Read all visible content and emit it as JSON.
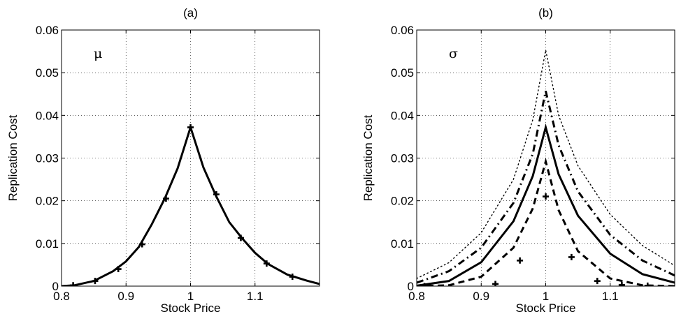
{
  "chart_data": [
    {
      "type": "line",
      "title": "(a)",
      "annotation": "μ",
      "xlabel": "Stock Price",
      "ylabel": "Replication Cost",
      "xlim": [
        0.8,
        1.2
      ],
      "ylim": [
        0,
        0.06
      ],
      "xticks": [
        0.8,
        0.9,
        1,
        1.1
      ],
      "xtick_labels": [
        "0.8",
        "0.9",
        "1",
        "1.1"
      ],
      "yticks": [
        0,
        0.01,
        0.02,
        0.03,
        0.04,
        0.05,
        0.06
      ],
      "ytick_labels": [
        "0",
        "0.01",
        "0.02",
        "0.03",
        "0.04",
        "0.05",
        "0.06"
      ],
      "grid": true,
      "series": [
        {
          "style": "solid",
          "peak_x": 1.0,
          "x": [
            0.8,
            0.82,
            0.85,
            0.88,
            0.9,
            0.92,
            0.94,
            0.96,
            0.98,
            1.0,
            1.02,
            1.04,
            1.06,
            1.08,
            1.1,
            1.12,
            1.15,
            1.18,
            1.2
          ],
          "values": [
            0.0,
            0.0002,
            0.0012,
            0.0035,
            0.0058,
            0.0092,
            0.0145,
            0.0205,
            0.0276,
            0.0372,
            0.0278,
            0.021,
            0.015,
            0.0112,
            0.0078,
            0.0052,
            0.0027,
            0.0013,
            0.0005
          ]
        },
        {
          "style": "markers",
          "x": [
            0.818,
            0.852,
            0.888,
            0.925,
            0.962,
            1.0,
            1.04,
            1.078,
            1.118,
            1.158
          ],
          "values": [
            0.0002,
            0.0012,
            0.004,
            0.0098,
            0.0205,
            0.0372,
            0.0215,
            0.0113,
            0.0053,
            0.0022
          ]
        }
      ]
    },
    {
      "type": "line",
      "title": "(b)",
      "annotation": "σ",
      "xlabel": "Stock Price",
      "ylabel": "Replication Cost",
      "xlim": [
        0.8,
        1.2
      ],
      "ylim": [
        0,
        0.06
      ],
      "xticks": [
        0.8,
        0.9,
        1,
        1.1
      ],
      "xtick_labels": [
        "0.8",
        "0.9",
        "1",
        "1.1"
      ],
      "yticks": [
        0,
        0.01,
        0.02,
        0.03,
        0.04,
        0.05,
        0.06
      ],
      "ytick_labels": [
        "0",
        "0.01",
        "0.02",
        "0.03",
        "0.04",
        "0.05",
        "0.06"
      ],
      "grid": true,
      "series": [
        {
          "style": "dotted",
          "peak_x": 1.0,
          "x": [
            0.8,
            0.85,
            0.9,
            0.95,
            0.98,
            1.0,
            1.02,
            1.05,
            1.1,
            1.15,
            1.2
          ],
          "values": [
            0.0018,
            0.0055,
            0.0125,
            0.025,
            0.039,
            0.0553,
            0.04,
            0.0282,
            0.0168,
            0.0095,
            0.0048
          ]
        },
        {
          "style": "dashdot",
          "peak_x": 1.0,
          "x": [
            0.8,
            0.85,
            0.9,
            0.95,
            0.98,
            1.0,
            1.02,
            1.05,
            1.1,
            1.15,
            1.2
          ],
          "values": [
            0.0008,
            0.0035,
            0.009,
            0.0195,
            0.031,
            0.0457,
            0.033,
            0.0222,
            0.012,
            0.006,
            0.0025
          ]
        },
        {
          "style": "solid",
          "peak_x": 1.0,
          "x": [
            0.8,
            0.85,
            0.9,
            0.95,
            0.98,
            1.0,
            1.02,
            1.05,
            1.1,
            1.15,
            1.2
          ],
          "values": [
            0.0001,
            0.0012,
            0.0056,
            0.0152,
            0.0258,
            0.0372,
            0.0262,
            0.0165,
            0.0076,
            0.0028,
            0.0008
          ]
        },
        {
          "style": "dashed",
          "peak_x": 1.0,
          "x": [
            0.8,
            0.85,
            0.9,
            0.95,
            0.98,
            1.0,
            1.02,
            1.05,
            1.1,
            1.15,
            1.2
          ],
          "values": [
            0.0,
            0.0002,
            0.0022,
            0.009,
            0.0182,
            0.0292,
            0.0178,
            0.0082,
            0.0018,
            0.0002,
            0.0
          ]
        },
        {
          "style": "markers",
          "x": [
            0.812,
            0.922,
            0.96,
            1.0,
            1.04,
            1.08,
            1.118,
            1.158
          ],
          "values": [
            0.0,
            0.0005,
            0.006,
            0.021,
            0.0068,
            0.0012,
            0.0003,
            0.0001
          ]
        }
      ]
    }
  ]
}
